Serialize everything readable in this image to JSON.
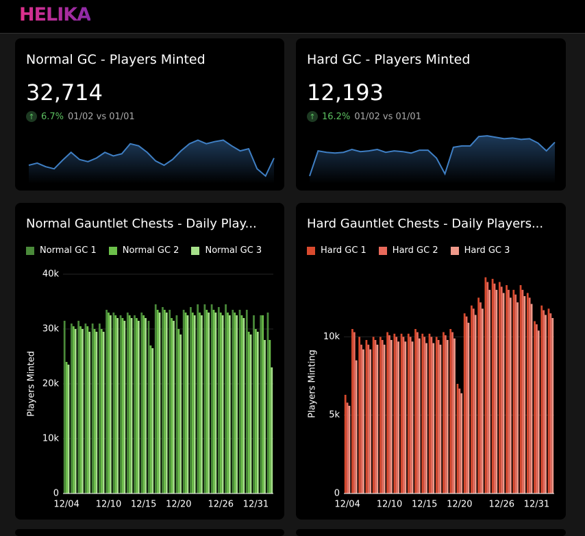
{
  "header": {
    "logo": "HELIKA"
  },
  "kpis": [
    {
      "title": "Normal GC - Players Minted",
      "value": "32,714",
      "change": "6.7%",
      "period": "01/02 vs 01/01"
    },
    {
      "title": "Hard GC - Players Minted",
      "value": "12,193",
      "change": "16.2%",
      "period": "01/02 vs 01/01"
    }
  ],
  "chart_data": [
    {
      "type": "area",
      "color": "#3f7fc4",
      "ylim": [
        0,
        65
      ],
      "values": [
        20,
        23,
        18,
        15,
        27,
        38,
        28,
        25,
        30,
        38,
        33,
        36,
        50,
        47,
        38,
        26,
        20,
        28,
        40,
        50,
        55,
        50,
        53,
        55,
        47,
        40,
        43,
        15,
        5,
        30
      ]
    },
    {
      "type": "area",
      "color": "#3f7fc4",
      "ylim": [
        0,
        65
      ],
      "values": [
        5,
        40,
        38,
        37,
        38,
        42,
        39,
        40,
        42,
        38,
        40,
        39,
        37,
        41,
        41,
        30,
        8,
        45,
        47,
        47,
        60,
        61,
        59,
        57,
        58,
        56,
        57,
        51,
        40,
        52
      ]
    },
    {
      "type": "bar",
      "title": "Normal Gauntlet Chests - Daily Play...",
      "y_label": "Players Minted",
      "grid": true,
      "categories": [
        "12/04",
        null,
        null,
        null,
        null,
        null,
        "12/10",
        null,
        null,
        null,
        null,
        "12/15",
        null,
        null,
        null,
        null,
        "12/20",
        null,
        null,
        null,
        null,
        null,
        "12/26",
        null,
        null,
        null,
        null,
        "12/31",
        null,
        null
      ],
      "ylim": [
        0,
        40000
      ],
      "yticks": [
        0,
        {
          "value": 10000,
          "label": "10k"
        },
        {
          "value": 20000,
          "label": "20k"
        },
        {
          "value": 30000,
          "label": "30k"
        },
        {
          "value": 40000,
          "label": "40k"
        }
      ],
      "series": [
        {
          "name": "Normal GC 1",
          "color": "#4a8a3a",
          "values": [
            31500,
            31000,
            31500,
            31000,
            31000,
            31000,
            33500,
            33000,
            32500,
            33000,
            32500,
            33000,
            31500,
            34500,
            34000,
            33500,
            32500,
            33500,
            34000,
            34500,
            34500,
            34500,
            34000,
            34500,
            33500,
            33500,
            33500,
            32500,
            32500,
            33000
          ]
        },
        {
          "name": "Normal GC 2",
          "color": "#6cc04a",
          "values": [
            24000,
            30500,
            30500,
            30500,
            30000,
            30000,
            33000,
            32500,
            32000,
            32500,
            32000,
            32500,
            27000,
            33500,
            33500,
            32000,
            30000,
            33000,
            33000,
            33000,
            33500,
            33500,
            33000,
            33000,
            33000,
            32500,
            29500,
            30000,
            32500,
            28000
          ]
        },
        {
          "name": "Normal GC 3",
          "color": "#a6e08a",
          "values": [
            23500,
            30000,
            30000,
            29500,
            29500,
            29500,
            32500,
            32000,
            31500,
            32000,
            31500,
            32000,
            26500,
            33000,
            33000,
            31500,
            29000,
            32500,
            32500,
            32500,
            33000,
            33000,
            32500,
            32500,
            32500,
            32000,
            29000,
            29500,
            28000,
            23000
          ]
        }
      ]
    },
    {
      "type": "bar",
      "title": "Hard Gauntlet Chests - Daily Players...",
      "y_label": "Players Minting",
      "grid": true,
      "categories": [
        "12/04",
        null,
        null,
        null,
        null,
        null,
        "12/10",
        null,
        null,
        null,
        null,
        "12/15",
        null,
        null,
        null,
        null,
        "12/20",
        null,
        null,
        null,
        null,
        null,
        "12/26",
        null,
        null,
        null,
        null,
        "12/31",
        null,
        null
      ],
      "ylim": [
        0,
        14000
      ],
      "yticks": [
        0,
        {
          "value": 5000,
          "label": "5k"
        },
        {
          "value": 10000,
          "label": "10k"
        }
      ],
      "series": [
        {
          "name": "Hard GC 1",
          "color": "#d94a2e",
          "values": [
            6300,
            10500,
            10000,
            9800,
            10000,
            10000,
            10300,
            10200,
            10200,
            10200,
            10500,
            10200,
            10200,
            10000,
            10300,
            10500,
            7000,
            11500,
            12000,
            12500,
            13800,
            13700,
            13500,
            13300,
            13000,
            13300,
            12800,
            11000,
            12000,
            11800
          ]
        },
        {
          "name": "Hard GC 2",
          "color": "#e8695a",
          "values": [
            5800,
            10300,
            9500,
            9500,
            9800,
            9800,
            10100,
            10000,
            10000,
            10000,
            10300,
            10000,
            10000,
            9800,
            10100,
            10300,
            6700,
            11300,
            11800,
            12200,
            13500,
            13400,
            13200,
            13000,
            12700,
            13000,
            12500,
            10800,
            11700,
            11500
          ]
        },
        {
          "name": "Hard GC 3",
          "color": "#f0998a",
          "values": [
            5600,
            8500,
            9200,
            9200,
            9500,
            9500,
            9800,
            9700,
            9700,
            9700,
            9900,
            9600,
            9600,
            9500,
            9800,
            9900,
            6400,
            10900,
            11400,
            11800,
            13000,
            13000,
            12800,
            12500,
            12200,
            12600,
            12100,
            10400,
            11400,
            11200
          ]
        }
      ]
    }
  ]
}
